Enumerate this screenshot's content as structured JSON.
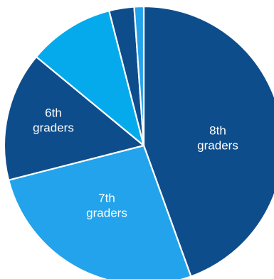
{
  "chart_data": {
    "type": "pie",
    "start_angle_deg": 0,
    "direction": "clockwise",
    "slices": [
      {
        "label_lines": [
          "8th",
          "graders"
        ],
        "value": 44.5,
        "color": "#0E4D8C"
      },
      {
        "label_lines": [
          "7th",
          "graders"
        ],
        "value": 26.5,
        "color": "#22A3EB"
      },
      {
        "label_lines": [
          "6th",
          "graders"
        ],
        "value": 15.0,
        "color": "#0E4D8C"
      },
      {
        "label_lines": [],
        "value": 10.0,
        "color": "#04AAEC"
      },
      {
        "label_lines": [],
        "value": 2.9,
        "color": "#0E4D8C"
      },
      {
        "label_lines": [],
        "value": 1.1,
        "color": "#22A3EB"
      }
    ]
  }
}
